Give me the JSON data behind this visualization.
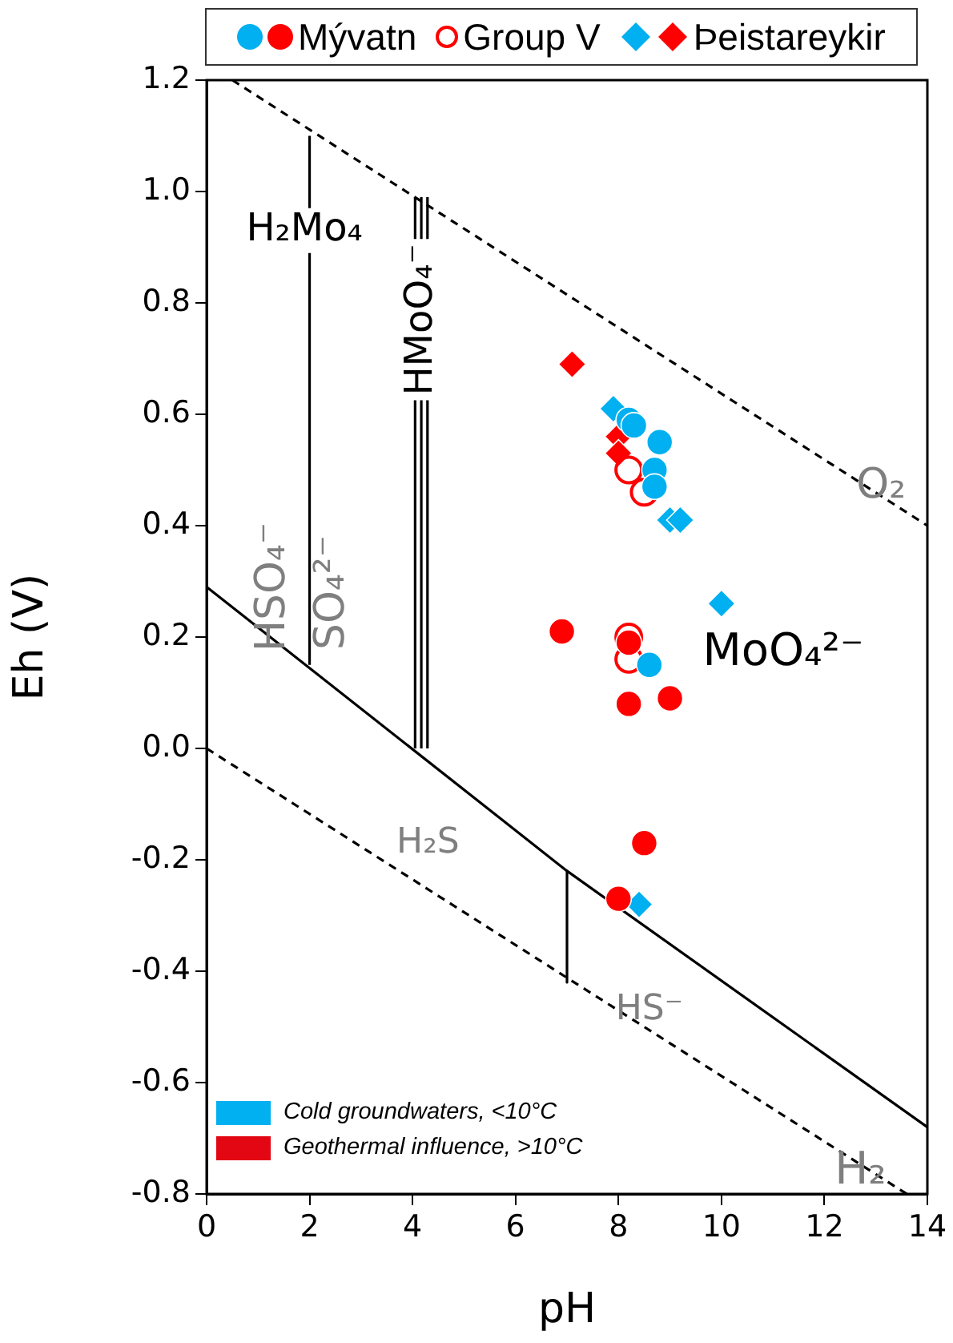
{
  "chart_data": {
    "type": "scatter",
    "xlabel": "pH",
    "ylabel": "Eh (V)",
    "xlim": [
      0,
      14
    ],
    "ylim": [
      -0.8,
      1.2
    ],
    "xticks": [
      0,
      2,
      4,
      6,
      8,
      10,
      12,
      14
    ],
    "yticks": [
      -0.8,
      -0.6,
      -0.4,
      -0.2,
      {
        "value": 0,
        "label": "0.0"
      },
      0.2,
      0.4,
      0.6,
      0.8,
      {
        "value": 1,
        "label": "1.0"
      },
      1.2
    ],
    "legend": "top",
    "annotations": [
      "Cold groundwaters, <10°C",
      "Geothermal influence, >10°C",
      {
        "text": "H₂Mo₄",
        "x": 1.9,
        "y": 0.93
      },
      {
        "text": "HMoO₄⁻",
        "x": 4.17,
        "y": 0.77
      },
      {
        "text": "O₂",
        "x": 13.1,
        "y": 0.47
      },
      {
        "text": "H₂",
        "x": 12.7,
        "y": -0.76
      },
      "HSO₄⁻",
      "SO₄²⁻",
      "MoO₄²⁻",
      "H₂S",
      "HS⁻"
    ],
    "series": [
      {
        "type": "line",
        "x": [
          0.5,
          14
        ],
        "values": [
          1.2,
          0.4
        ],
        "color": "#000000",
        "line_style": "dashed",
        "marker": "none"
      },
      {
        "type": "line",
        "x": [
          0,
          13.6
        ],
        "values": [
          0,
          -0.8
        ],
        "color": "#000000",
        "line_style": "dashed",
        "marker": "none"
      },
      {
        "type": "line",
        "x": [
          0,
          7,
          14
        ],
        "values": [
          0.29,
          -0.22,
          -0.68
        ],
        "color": "#000000",
        "line_style": "solid",
        "marker": "none"
      },
      {
        "type": "line",
        "x": [
          7,
          7
        ],
        "values": [
          -0.22,
          -0.42
        ],
        "color": "#000000",
        "line_style": "solid",
        "marker": "none"
      },
      {
        "type": "line",
        "x": [
          2,
          2
        ],
        "values": [
          0.15,
          1.1
        ],
        "color": "#000000",
        "line_style": "solid",
        "marker": "none"
      },
      {
        "type": "line",
        "x": [
          4.05,
          4.05
        ],
        "values": [
          0.0,
          0.99
        ],
        "color": "#000000",
        "line_style": "solid",
        "marker": "none"
      },
      {
        "type": "line",
        "x": [
          4.17,
          4.17
        ],
        "values": [
          0.0,
          0.99
        ],
        "color": "#000000",
        "line_style": "solid",
        "marker": "none"
      },
      {
        "type": "line",
        "x": [
          4.29,
          4.29
        ],
        "values": [
          0.0,
          0.99
        ],
        "color": "#000000",
        "line_style": "solid",
        "marker": "none"
      },
      {
        "name": "Mývatn",
        "marker": "circle",
        "x": [
          8.2,
          8.3,
          8.8,
          8.7,
          8.7,
          8.6,
          6.9,
          8.2,
          8.2,
          9.0,
          8.5,
          8.0
        ],
        "values": [
          0.59,
          0.58,
          0.55,
          0.5,
          0.47,
          0.15,
          0.21,
          0.19,
          0.08,
          0.09,
          -0.17,
          -0.27
        ],
        "colors": [
          "#00b0f0",
          "#00b0f0",
          "#00b0f0",
          "#00b0f0",
          "#00b0f0",
          "#00b0f0",
          "#ff0000",
          "#ff0000",
          "#ff0000",
          "#ff0000",
          "#ff0000",
          "#ff0000"
        ]
      },
      {
        "name": "Group V",
        "marker": "circle",
        "x": [
          8.2,
          8.2,
          8.2,
          8.5
        ],
        "values": [
          0.2,
          0.16,
          0.5,
          0.46
        ],
        "color": "#ff0000"
      },
      {
        "name": "Þeistareykir",
        "marker": "diamond",
        "x": [
          7.9,
          9.0,
          9.2,
          10.0,
          8.4,
          7.1,
          8.0,
          8.0
        ],
        "values": [
          0.61,
          0.41,
          0.41,
          0.26,
          -0.28,
          0.69,
          0.56,
          0.53
        ],
        "colors": [
          "#00b0f0",
          "#00b0f0",
          "#00b0f0",
          "#00b0f0",
          "#00b0f0",
          "#ff0000",
          "#ff0000",
          "#ff0000"
        ]
      }
    ]
  }
}
